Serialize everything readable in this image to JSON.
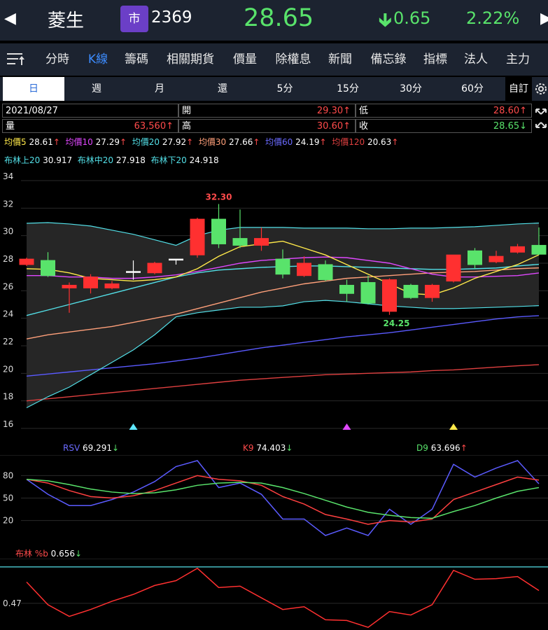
{
  "header": {
    "back_glyph": "◀",
    "forward_glyph": "▶",
    "stock_name": "菱生",
    "market_badge": "市",
    "stock_code": "2369",
    "price": "28.65",
    "change": "0.65",
    "change_pct": "2.22%",
    "colors": {
      "up": "#59e36b",
      "badge": "#6b3fc7"
    }
  },
  "nav": {
    "menu_icon": "list-sort-icon",
    "tabs": [
      {
        "label": "分時"
      },
      {
        "label": "K線"
      },
      {
        "label": "籌碼"
      },
      {
        "label": "相關期貨"
      },
      {
        "label": "價量"
      },
      {
        "label": "除權息"
      },
      {
        "label": "新聞"
      },
      {
        "label": "備忘錄"
      },
      {
        "label": "指標"
      },
      {
        "label": "法人"
      },
      {
        "label": "主力"
      }
    ],
    "active_tab": "K線"
  },
  "periods": {
    "items": [
      {
        "label": "日"
      },
      {
        "label": "週"
      },
      {
        "label": "月"
      },
      {
        "label": "還"
      },
      {
        "label": "5分"
      },
      {
        "label": "15分"
      },
      {
        "label": "30分"
      },
      {
        "label": "60分"
      },
      {
        "label": "自訂"
      }
    ],
    "active": "日",
    "settings_icon": "gear-icon"
  },
  "info": {
    "date": "2021/08/27",
    "open_label": "開",
    "open_value": "29.30↑",
    "low_label": "低",
    "low_value": "28.60↑",
    "volume_label": "量",
    "volume_value": "63,560↑",
    "high_label": "高",
    "high_value": "30.60↑",
    "close_label": "收",
    "close_value": "28.65↓",
    "expand_icon": "expand-arrows-icon"
  },
  "ma_legend": [
    {
      "label": "均價5",
      "value": "28.61",
      "arrow": "↑",
      "color": "#ffe94a"
    },
    {
      "label": "均價10",
      "value": "27.29",
      "arrow": "↑",
      "color": "#e048ff"
    },
    {
      "label": "均價20",
      "value": "27.92",
      "arrow": "↑",
      "color": "#53e0e8"
    },
    {
      "label": "均價30",
      "value": "27.66",
      "arrow": "↑",
      "color": "#ffa07a"
    },
    {
      "label": "均價60",
      "value": "24.19",
      "arrow": "↑",
      "color": "#5a5aff"
    },
    {
      "label": "均價120",
      "value": "20.63",
      "arrow": "↑",
      "color": "#e04040"
    }
  ],
  "boll_legend": [
    {
      "label": "布林上20",
      "value": "30.917"
    },
    {
      "label": "布林中20",
      "value": "27.918"
    },
    {
      "label": "布林下20",
      "value": "24.918"
    }
  ],
  "kd_legend": [
    {
      "label": "RSV",
      "value": "69.291",
      "arrow": "↓",
      "color": "#5b5bff"
    },
    {
      "label": "K9",
      "value": "74.403",
      "arrow": "↓",
      "color": "#ff4040"
    },
    {
      "label": "D9",
      "value": "63.696",
      "arrow": "↑",
      "color": "#59e36b"
    }
  ],
  "pctb_legend": {
    "label": "布林 %b",
    "value": "0.656",
    "arrow": "↓"
  },
  "chart_data": [
    {
      "type": "candlestick",
      "ylim": [
        16,
        34
      ],
      "yticks": [
        "34",
        "32",
        "30",
        "28",
        "26",
        "24",
        "22",
        "20",
        "18",
        "16"
      ],
      "max_label": "32.30",
      "min_label": "24.25",
      "candles": [
        {
          "o": 27.9,
          "c": 28.3,
          "h": 28.4,
          "l": 27.8
        },
        {
          "o": 28.2,
          "c": 27.1,
          "h": 28.8,
          "l": 27.0
        },
        {
          "o": 26.2,
          "c": 26.4,
          "h": 26.6,
          "l": 24.4
        },
        {
          "o": 26.2,
          "c": 27.0,
          "h": 27.2,
          "l": 25.8
        },
        {
          "o": 26.2,
          "c": 26.5,
          "h": 26.7,
          "l": 26.1
        },
        {
          "o": 27.4,
          "c": 27.4,
          "h": 28.2,
          "l": 26.8
        },
        {
          "o": 27.3,
          "c": 28.0,
          "h": 28.1,
          "l": 27.2
        },
        {
          "o": 28.3,
          "c": 28.3,
          "h": 28.3,
          "l": 27.9
        },
        {
          "o": 28.6,
          "c": 31.2,
          "h": 31.3,
          "l": 28.4
        },
        {
          "o": 31.2,
          "c": 29.4,
          "h": 32.3,
          "l": 29.1
        },
        {
          "o": 29.8,
          "c": 29.3,
          "h": 31.9,
          "l": 29.1
        },
        {
          "o": 29.3,
          "c": 29.8,
          "h": 30.6,
          "l": 28.9
        },
        {
          "o": 28.3,
          "c": 27.2,
          "h": 29.0,
          "l": 26.9
        },
        {
          "o": 27.1,
          "c": 28.0,
          "h": 28.5,
          "l": 27.0
        },
        {
          "o": 27.9,
          "c": 26.8,
          "h": 28.2,
          "l": 26.7
        },
        {
          "o": 26.4,
          "c": 25.8,
          "h": 26.8,
          "l": 25.2
        },
        {
          "o": 26.6,
          "c": 25.1,
          "h": 27.1,
          "l": 25.0
        },
        {
          "o": 24.5,
          "c": 26.8,
          "h": 26.9,
          "l": 24.25
        },
        {
          "o": 26.4,
          "c": 25.5,
          "h": 26.5,
          "l": 25.4
        },
        {
          "o": 25.5,
          "c": 26.4,
          "h": 26.5,
          "l": 25.2
        },
        {
          "o": 26.7,
          "c": 28.6,
          "h": 28.6,
          "l": 26.6
        },
        {
          "o": 28.9,
          "c": 27.9,
          "h": 29.1,
          "l": 27.6
        },
        {
          "o": 28.1,
          "c": 28.5,
          "h": 28.9,
          "l": 28.0
        },
        {
          "o": 28.8,
          "c": 29.2,
          "h": 29.4,
          "l": 28.7
        },
        {
          "o": 29.3,
          "c": 28.65,
          "h": 30.6,
          "l": 28.6
        }
      ],
      "boll_upper": [
        30.9,
        30.95,
        30.85,
        30.7,
        30.4,
        30.1,
        29.7,
        29.3,
        30.0,
        30.4,
        30.6,
        30.6,
        30.6,
        30.55,
        30.55,
        30.55,
        30.5,
        30.5,
        30.55,
        30.55,
        30.6,
        30.65,
        30.75,
        30.85,
        30.917
      ],
      "boll_lower": [
        17.5,
        18.3,
        19.0,
        19.9,
        20.8,
        21.7,
        22.8,
        24.1,
        24.4,
        24.6,
        24.8,
        24.8,
        24.9,
        25.2,
        25.3,
        25.2,
        25.05,
        24.9,
        24.8,
        24.7,
        24.7,
        24.75,
        24.8,
        24.85,
        24.918
      ],
      "series": [
        {
          "name": "均價5",
          "color": "#ffe94a",
          "values": [
            27.6,
            27.55,
            27.3,
            26.9,
            26.8,
            26.7,
            26.8,
            27.0,
            27.6,
            28.5,
            29.2,
            29.4,
            29.6,
            29.1,
            28.6,
            27.9,
            27.2,
            26.5,
            25.8,
            25.7,
            26.2,
            26.9,
            27.4,
            27.9,
            28.61
          ]
        },
        {
          "name": "均價10",
          "color": "#e048ff",
          "values": [
            27.1,
            27.1,
            27.0,
            27.0,
            26.9,
            26.9,
            27.0,
            27.15,
            27.4,
            27.7,
            28.0,
            28.2,
            28.3,
            28.4,
            28.45,
            28.4,
            28.2,
            28.0,
            27.6,
            27.2,
            27.0,
            27.0,
            27.05,
            27.1,
            27.29
          ]
        },
        {
          "name": "均價20",
          "color": "#53e0e8",
          "values": [
            24.2,
            24.6,
            25.0,
            25.4,
            25.8,
            26.2,
            26.6,
            27.0,
            27.3,
            27.5,
            27.6,
            27.7,
            27.75,
            27.8,
            27.8,
            27.75,
            27.7,
            27.65,
            27.6,
            27.55,
            27.55,
            27.6,
            27.65,
            27.8,
            27.92
          ]
        },
        {
          "name": "均價30",
          "color": "#ffa07a",
          "values": [
            22.5,
            22.8,
            23.0,
            23.2,
            23.4,
            23.7,
            24.0,
            24.3,
            24.7,
            25.1,
            25.5,
            25.9,
            26.2,
            26.5,
            26.7,
            26.9,
            27.0,
            27.1,
            27.2,
            27.3,
            27.35,
            27.4,
            27.5,
            27.6,
            27.66
          ]
        },
        {
          "name": "均價60",
          "color": "#5a5aff",
          "values": [
            19.8,
            19.95,
            20.1,
            20.25,
            20.4,
            20.55,
            20.7,
            20.9,
            21.1,
            21.35,
            21.6,
            21.85,
            22.05,
            22.25,
            22.45,
            22.65,
            22.8,
            22.95,
            23.15,
            23.35,
            23.55,
            23.75,
            23.95,
            24.1,
            24.19
          ]
        },
        {
          "name": "均價120",
          "color": "#e04040",
          "values": [
            18.0,
            18.15,
            18.3,
            18.45,
            18.6,
            18.75,
            18.9,
            19.05,
            19.2,
            19.35,
            19.5,
            19.6,
            19.7,
            19.8,
            19.9,
            19.95,
            20.0,
            20.05,
            20.1,
            20.2,
            20.25,
            20.35,
            20.45,
            20.55,
            20.63
          ]
        }
      ],
      "markers": [
        {
          "index": 5,
          "color": "#5fe8ff"
        },
        {
          "index": 15,
          "color": "#e048ff"
        },
        {
          "index": 20,
          "color": "#ffe94a"
        }
      ]
    },
    {
      "type": "line",
      "ylim": [
        0,
        100
      ],
      "yticks": [
        "80",
        "50",
        "20"
      ],
      "series": [
        {
          "name": "RSV",
          "color": "#5b5bff",
          "values": [
            75,
            55,
            40,
            40,
            48,
            58,
            72,
            92,
            100,
            64,
            70,
            55,
            22,
            22,
            0,
            10,
            0,
            35,
            15,
            35,
            95,
            78,
            90,
            100,
            69
          ]
        },
        {
          "name": "K9",
          "color": "#ff4040",
          "values": [
            75,
            70,
            60,
            52,
            50,
            53,
            60,
            70,
            80,
            75,
            73,
            67,
            52,
            42,
            28,
            22,
            15,
            20,
            18,
            22,
            48,
            58,
            68,
            78,
            74
          ]
        },
        {
          "name": "D9",
          "color": "#59e36b",
          "values": [
            75,
            73,
            68,
            62,
            58,
            56,
            57,
            61,
            67,
            70,
            71,
            70,
            64,
            56,
            47,
            38,
            31,
            27,
            24,
            23,
            32,
            40,
            50,
            59,
            64
          ]
        }
      ]
    },
    {
      "type": "line",
      "ytick_label": "0.47",
      "ytick_value": 0.47,
      "reference_value": 1.0,
      "ylim": [
        0.0,
        1.06
      ],
      "series": [
        {
          "name": "布林 %b",
          "color": "#ff3030",
          "values": [
            0.78,
            0.45,
            0.28,
            0.38,
            0.5,
            0.6,
            0.73,
            0.8,
            0.98,
            0.7,
            0.72,
            0.55,
            0.38,
            0.42,
            0.23,
            0.22,
            0.12,
            0.35,
            0.3,
            0.45,
            0.95,
            0.82,
            0.83,
            0.86,
            0.656
          ]
        }
      ]
    }
  ]
}
